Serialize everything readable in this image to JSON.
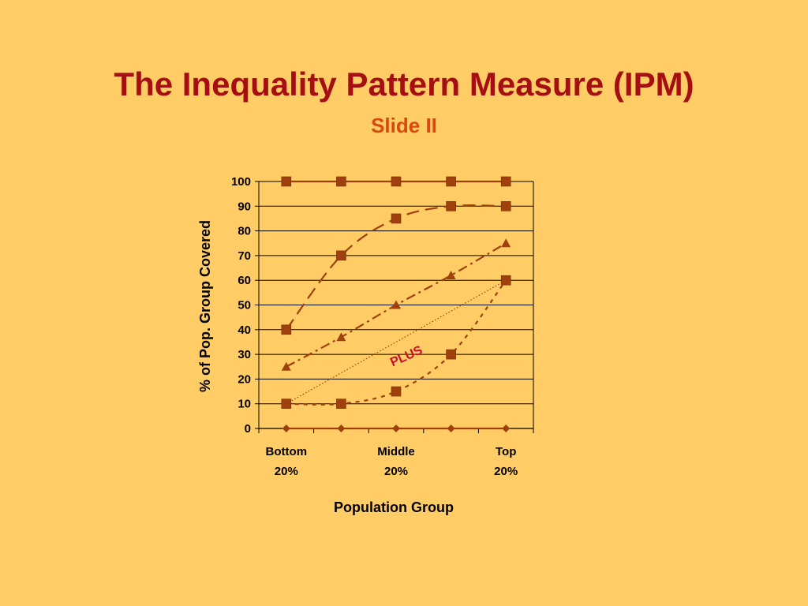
{
  "slide": {
    "title": "The Inequality Pattern Measure (IPM)",
    "subtitle": "Slide II"
  },
  "colors": {
    "background": "#FFCC66",
    "title": "#A50F12",
    "subtitle": "#D9480F",
    "series": "#A0400D",
    "annotation": "#C8102E"
  },
  "chart_data": {
    "type": "line",
    "xlabel": "Population Group",
    "ylabel": "% of Pop. Group Covered",
    "ylim": [
      0,
      100
    ],
    "yticks": [
      0,
      10,
      20,
      30,
      40,
      50,
      60,
      70,
      80,
      90,
      100
    ],
    "x": [
      1,
      2,
      3,
      4,
      5
    ],
    "xtick_labels": [
      {
        "x": 1,
        "line1": "Bottom",
        "line2": "20%"
      },
      {
        "x": 3,
        "line1": "Middle",
        "line2": "20%"
      },
      {
        "x": 5,
        "line1": "Top",
        "line2": "20%"
      }
    ],
    "grid": "horizontal",
    "series": [
      {
        "values": [
          100,
          100,
          100,
          100,
          100
        ],
        "marker": "square",
        "line": "solid"
      },
      {
        "values": [
          40,
          70,
          85,
          90,
          90
        ],
        "marker": "square",
        "line": "long-dash"
      },
      {
        "values": [
          25,
          37,
          50,
          62,
          75
        ],
        "marker": "triangle",
        "line": "dash-dot"
      },
      {
        "values": [
          10,
          10,
          15,
          30,
          60
        ],
        "marker": "square",
        "line": "short-dash"
      },
      {
        "values": [
          0,
          0,
          0,
          0,
          0
        ],
        "marker": "diamond",
        "line": "solid"
      }
    ],
    "reference_line": {
      "from": [
        1,
        10
      ],
      "to": [
        5,
        60
      ],
      "line": "dotted"
    },
    "annotations": [
      {
        "text": "PLUS"
      }
    ]
  }
}
